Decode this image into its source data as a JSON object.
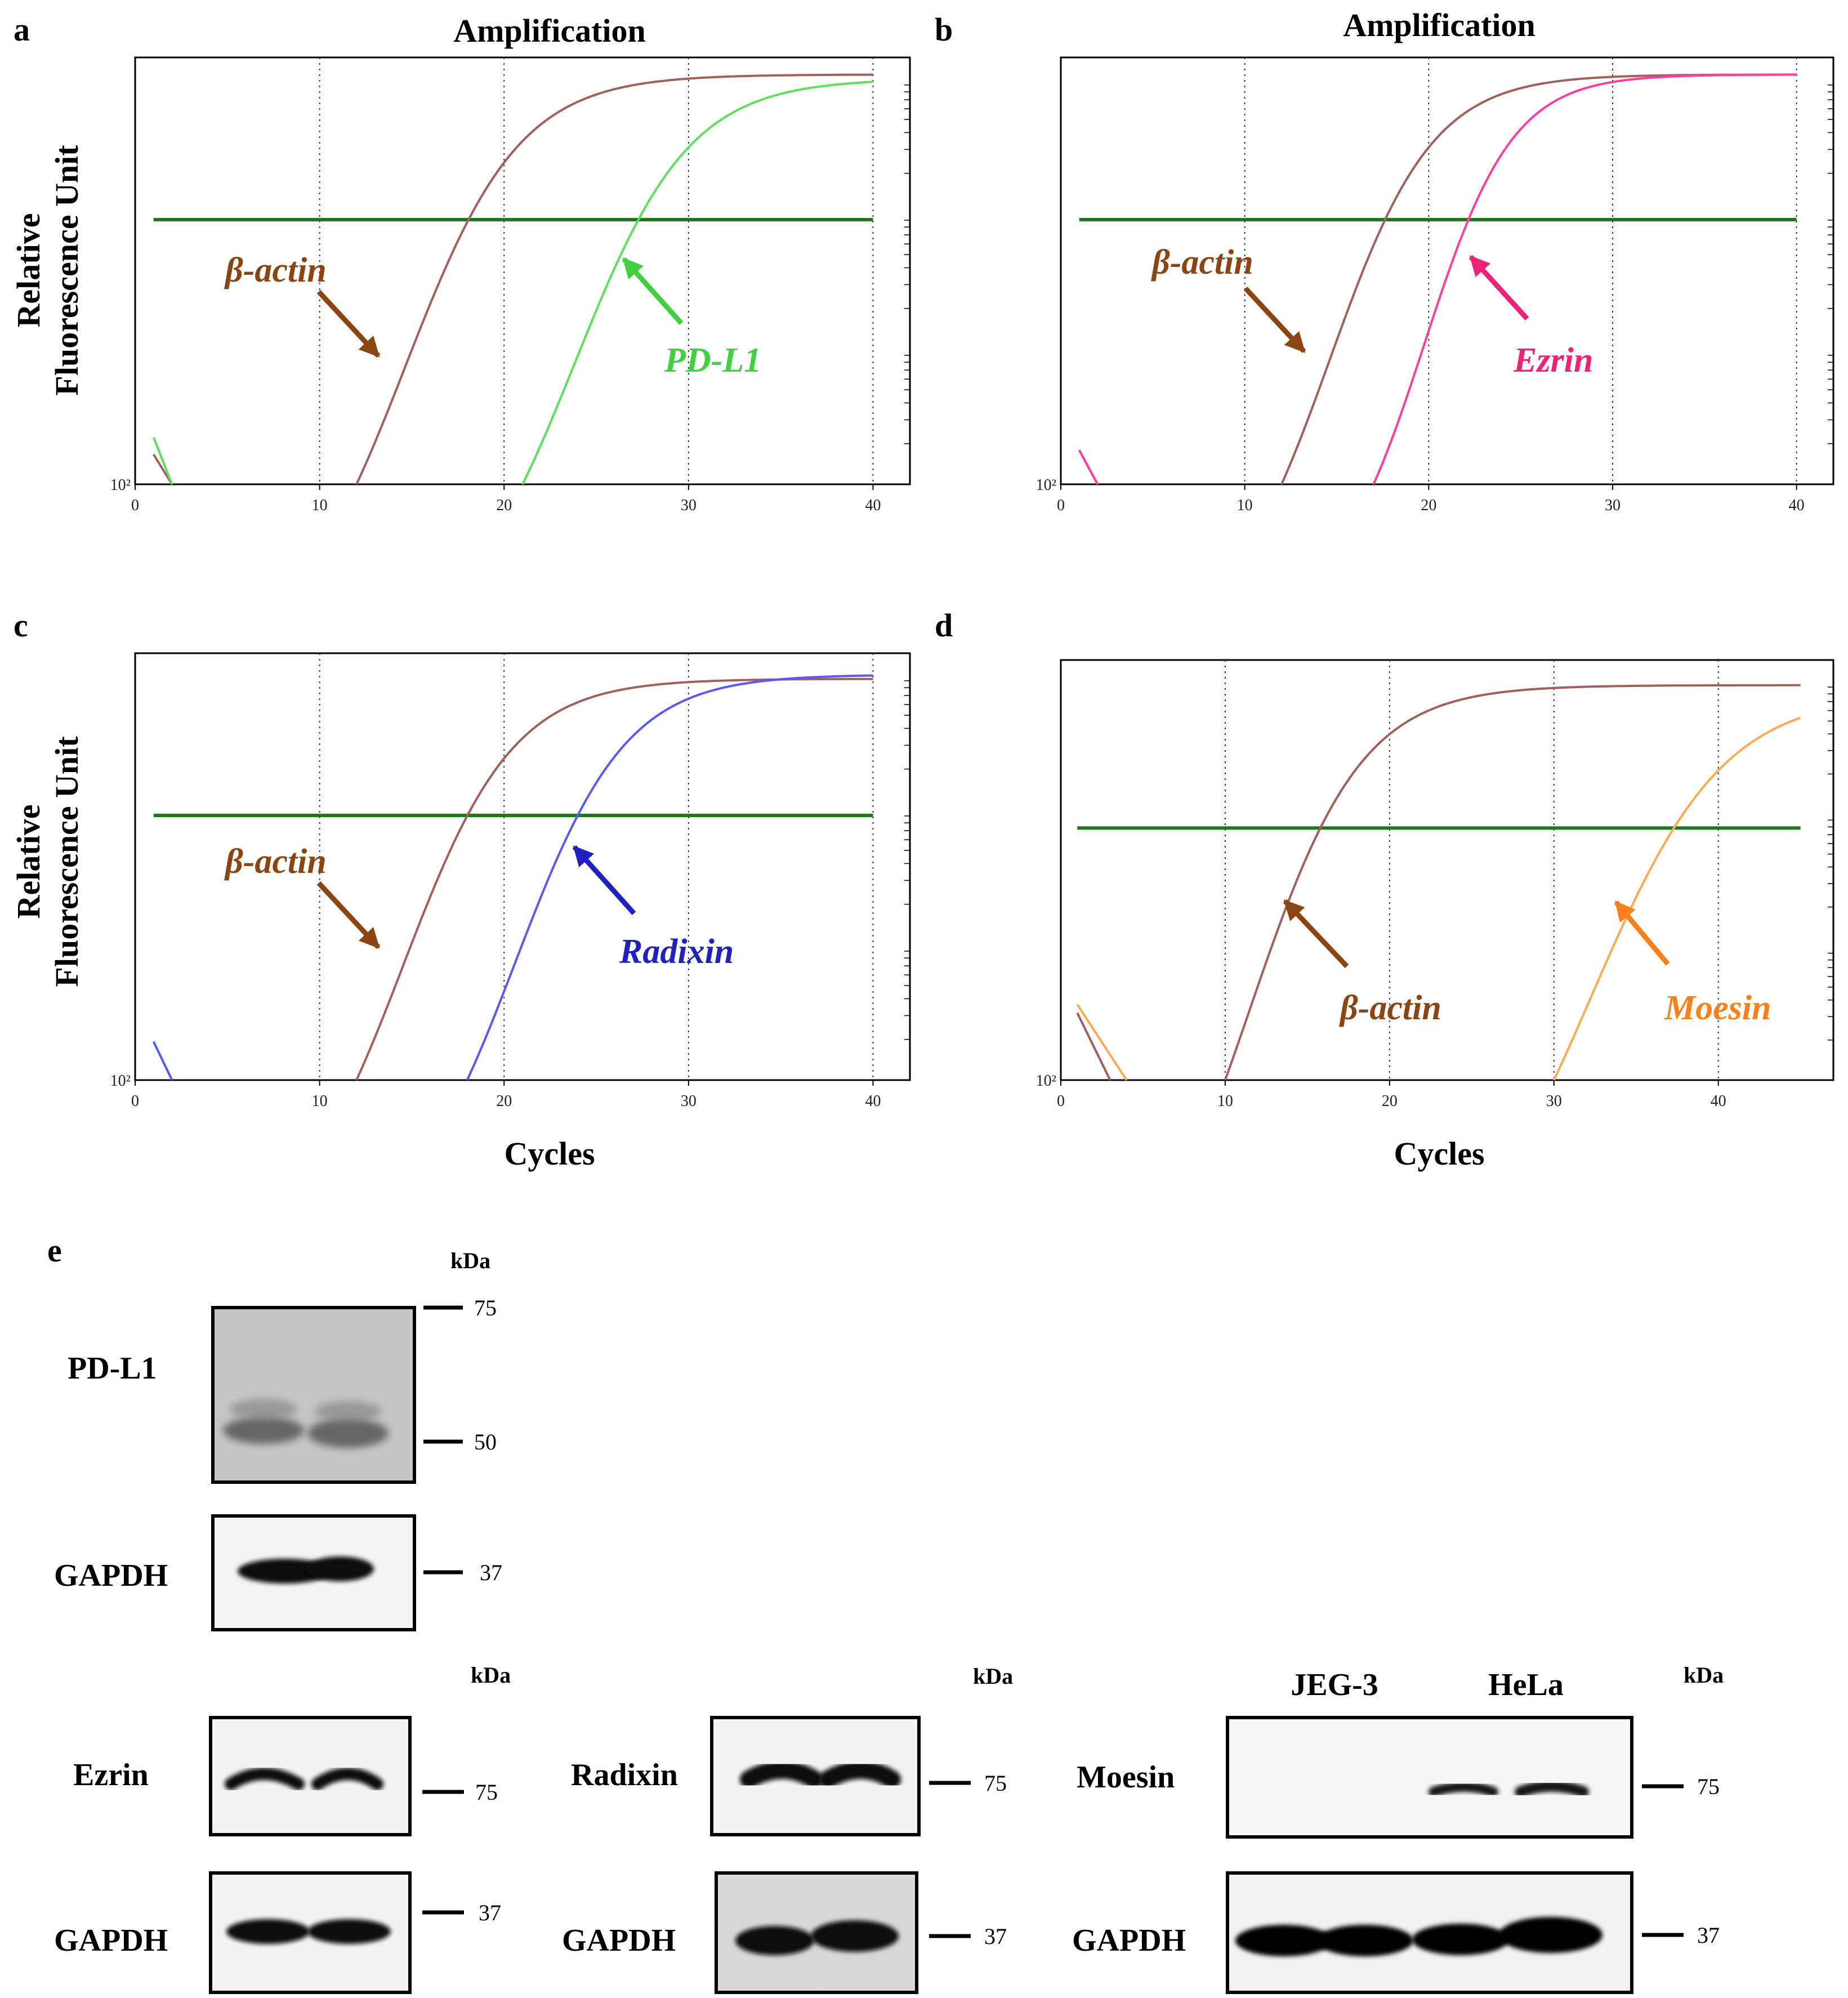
{
  "panel_letters": [
    "a",
    "b",
    "c",
    "d",
    "e"
  ],
  "chart_data": [
    {
      "panel": "a",
      "type": "line",
      "title": "Amplification",
      "xlabel": "",
      "ylabel": [
        "Relative",
        "Fluorescence Unit"
      ],
      "yscale": "log",
      "ytick_label": "10²",
      "xlim": [
        0,
        42
      ],
      "xticks": [
        0,
        10,
        20,
        30,
        40
      ],
      "threshold_level": 0.62,
      "series": [
        {
          "name": "β-actin",
          "color": "#a0605c",
          "ct": 16.5,
          "rise": 3.1,
          "start": 12.0,
          "end": 40,
          "plateau": 0.96,
          "early": [
            [
              1,
              0.07
            ],
            [
              2,
              0.0
            ]
          ]
        },
        {
          "name": "PD-L1",
          "color": "#5ee05e",
          "ct": 25.8,
          "rise": 3.1,
          "start": 21.0,
          "end": 40,
          "plateau": 0.95,
          "early": [
            [
              1,
              0.11
            ],
            [
              2,
              0.0
            ]
          ]
        }
      ],
      "annotations": [
        {
          "text": "β-actin",
          "color": "#8b4513"
        },
        {
          "text": "PD-L1",
          "color": "#40d040"
        }
      ]
    },
    {
      "panel": "b",
      "type": "line",
      "title": "Amplification",
      "xlabel": "",
      "ylabel": [],
      "yscale": "log",
      "ytick_label": "10²",
      "xlim": [
        0,
        42
      ],
      "xticks": [
        0,
        10,
        20,
        30,
        40
      ],
      "threshold_level": 0.62,
      "series": [
        {
          "name": "β-actin",
          "color": "#a0605c",
          "ct": 16.3,
          "rise": 2.8,
          "start": 12.0,
          "end": 40,
          "plateau": 0.96,
          "early": [
            [
              1,
              0.08
            ],
            [
              2,
              0.0
            ]
          ]
        },
        {
          "name": "Ezrin",
          "color": "#ff3fa0",
          "ct": 21.2,
          "rise": 2.4,
          "start": 17.0,
          "end": 40,
          "plateau": 0.96,
          "early": [
            [
              1,
              0.08
            ],
            [
              2,
              0.0
            ]
          ]
        }
      ],
      "annotations": [
        {
          "text": "β-actin",
          "color": "#8b4513"
        },
        {
          "text": "Ezrin",
          "color": "#ee2277"
        }
      ]
    },
    {
      "panel": "c",
      "type": "line",
      "title": "",
      "xlabel": "Cycles",
      "ylabel": [
        "Relative",
        "Fluorescence Unit"
      ],
      "yscale": "log",
      "ytick_label": "10²",
      "xlim": [
        0,
        42
      ],
      "xticks": [
        0,
        10,
        20,
        30,
        40
      ],
      "threshold_level": 0.62,
      "series": [
        {
          "name": "β-actin",
          "color": "#a0605c",
          "ct": 16.5,
          "rise": 3.0,
          "start": 12.0,
          "end": 40,
          "plateau": 0.94,
          "early": [
            [
              1,
              0.0
            ],
            [
              1,
              0.0
            ]
          ]
        },
        {
          "name": "Radixin",
          "color": "#5a5aee",
          "ct": 22.5,
          "rise": 3.0,
          "start": 18.0,
          "end": 40,
          "plateau": 0.95,
          "early": [
            [
              1,
              0.09
            ],
            [
              2,
              0.0
            ]
          ]
        }
      ],
      "annotations": [
        {
          "text": "β-actin",
          "color": "#8b4513"
        },
        {
          "text": "Radixin",
          "color": "#2020c0"
        }
      ]
    },
    {
      "panel": "d",
      "type": "line",
      "title": "",
      "xlabel": "Cycles",
      "ylabel": [],
      "yscale": "log",
      "ytick_label": "10²",
      "xlim": [
        0,
        47
      ],
      "xticks": [
        0,
        10,
        20,
        30,
        40
      ],
      "threshold_level": 0.6,
      "series": [
        {
          "name": "β-actin",
          "color": "#a0605c",
          "ct": 13.4,
          "rise": 3.4,
          "start": 10.0,
          "end": 45,
          "plateau": 0.94,
          "early": [
            [
              1,
              0.16
            ],
            [
              3,
              0.0
            ]
          ]
        },
        {
          "name": "Moesin",
          "color": "#ffaa55",
          "ct": 34.8,
          "rise": 4.0,
          "start": 30.0,
          "end": 45,
          "plateau": 0.92,
          "early": [
            [
              1,
              0.18
            ],
            [
              4,
              0.0
            ]
          ]
        }
      ],
      "annotations": [
        {
          "text": "β-actin",
          "color": "#8b4513"
        },
        {
          "text": "Moesin",
          "color": "#ff7f1a"
        }
      ]
    }
  ],
  "western_blot": {
    "kda_label": "kDa",
    "lanes": [
      "JEG-3",
      "HeLa"
    ],
    "pdl1": {
      "label": "PD-L1",
      "markers": [
        "75",
        "50"
      ]
    },
    "pdl1_gapdh": {
      "label": "GAPDH",
      "markers": [
        "37"
      ]
    },
    "ezrin": {
      "label": "Ezrin",
      "markers": [
        "75"
      ]
    },
    "ezrin_gapdh": {
      "label": "GAPDH",
      "markers": [
        "37"
      ]
    },
    "radixin": {
      "label": "Radixin",
      "markers": [
        "75"
      ]
    },
    "radixin_gapdh": {
      "label": "GAPDH",
      "markers": [
        "37"
      ]
    },
    "moesin": {
      "label": "Moesin",
      "markers": [
        "75"
      ]
    },
    "moesin_gapdh": {
      "label": "GAPDH",
      "markers": [
        "37"
      ]
    }
  }
}
